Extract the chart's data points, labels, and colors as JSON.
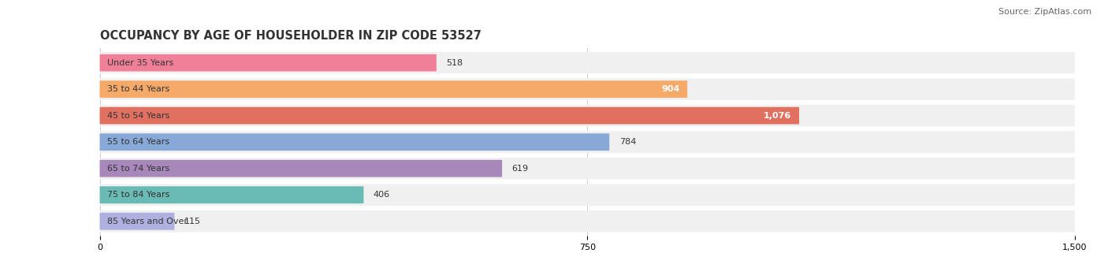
{
  "title": "OCCUPANCY BY AGE OF HOUSEHOLDER IN ZIP CODE 53527",
  "source": "Source: ZipAtlas.com",
  "categories": [
    "Under 35 Years",
    "35 to 44 Years",
    "45 to 54 Years",
    "55 to 64 Years",
    "65 to 74 Years",
    "75 to 84 Years",
    "85 Years and Over"
  ],
  "values": [
    518,
    904,
    1076,
    784,
    619,
    406,
    115
  ],
  "bar_colors": [
    "#F08098",
    "#F5AA6A",
    "#E07060",
    "#88A8D8",
    "#A888BB",
    "#6ABAB5",
    "#B0B0E0"
  ],
  "xlim": [
    0,
    1500
  ],
  "xticks": [
    0,
    750,
    1500
  ],
  "background_color": "#ffffff",
  "row_bg_color": "#f0f0f0",
  "label_fontsize": 8.0,
  "title_fontsize": 10.5,
  "value_fontsize": 8.0,
  "source_fontsize": 8.0,
  "inside_label_threshold": 850
}
